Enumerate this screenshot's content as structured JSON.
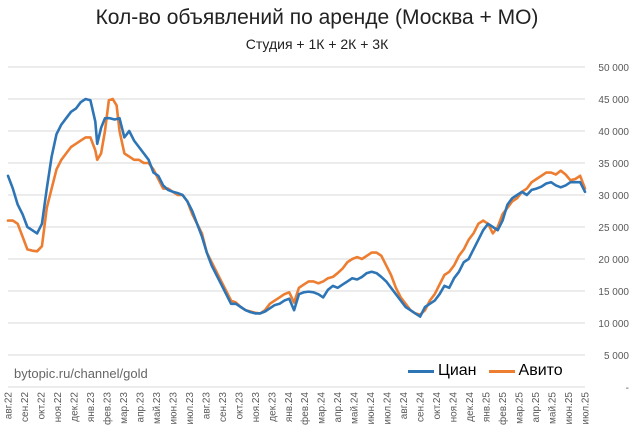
{
  "chart_data": {
    "type": "line",
    "title": "Кол-во объявлений по аренде (Москва + МО)",
    "subtitle": "Студия + 1К + 2К + 3К",
    "watermark": "bytopic.ru/channel/gold",
    "ylim": [
      0,
      50000
    ],
    "y_axis_position": "right",
    "y_ticks": [
      "-",
      "5 000",
      "10 000",
      "15 000",
      "20 000",
      "25 000",
      "30 000",
      "35 000",
      "40 000",
      "45 000",
      "50 000"
    ],
    "y_tick_values": [
      0,
      5000,
      10000,
      15000,
      20000,
      25000,
      30000,
      35000,
      40000,
      45000,
      50000
    ],
    "x_tick_labels": [
      "авг.22",
      "сен.22",
      "окт.22",
      "ноя.22",
      "дек.22",
      "янв.23",
      "фев.23",
      "мар.23",
      "апр.23",
      "май.23",
      "июн.23",
      "июл.23",
      "авг.23",
      "сен.23",
      "окт.23",
      "ноя.23",
      "дек.23",
      "янв.24",
      "фев.24",
      "мар.24",
      "апр.24",
      "май.24",
      "июн.24",
      "июл.24",
      "авг.24",
      "сен.24",
      "окт.24",
      "ноя.24",
      "дек.24",
      "янв.25",
      "фев.25",
      "мар.25",
      "апр.25",
      "май.25",
      "июн.25",
      "июл.25"
    ],
    "grid": "horizontal",
    "legend_position": "bottom-right",
    "series": [
      {
        "name": "Циан",
        "color": "#2e75b6",
        "points": [
          [
            0,
            33000
          ],
          [
            0.25,
            31000
          ],
          [
            0.5,
            28500
          ],
          [
            0.75,
            27000
          ],
          [
            1.0,
            25000
          ],
          [
            1.25,
            24500
          ],
          [
            1.5,
            24000
          ],
          [
            1.75,
            25500
          ],
          [
            2.0,
            31000
          ],
          [
            2.25,
            36000
          ],
          [
            2.5,
            39500
          ],
          [
            2.75,
            41000
          ],
          [
            3.0,
            42000
          ],
          [
            3.25,
            43000
          ],
          [
            3.5,
            43500
          ],
          [
            3.75,
            44500
          ],
          [
            4.0,
            45000
          ],
          [
            4.25,
            44800
          ],
          [
            4.5,
            41500
          ],
          [
            4.6,
            38000
          ],
          [
            4.8,
            40500
          ],
          [
            5.0,
            42000
          ],
          [
            5.25,
            42000
          ],
          [
            5.5,
            41800
          ],
          [
            5.75,
            42000
          ],
          [
            6.0,
            39000
          ],
          [
            6.25,
            40000
          ],
          [
            6.5,
            38500
          ],
          [
            6.75,
            37500
          ],
          [
            7.0,
            36500
          ],
          [
            7.25,
            35500
          ],
          [
            7.5,
            33500
          ],
          [
            7.75,
            33000
          ],
          [
            8.0,
            31500
          ],
          [
            8.25,
            30800
          ],
          [
            8.5,
            30500
          ],
          [
            8.75,
            30300
          ],
          [
            9.0,
            30000
          ],
          [
            9.25,
            29000
          ],
          [
            9.5,
            27500
          ],
          [
            9.75,
            25500
          ],
          [
            10.0,
            23500
          ],
          [
            10.25,
            21000
          ],
          [
            10.5,
            19000
          ],
          [
            10.75,
            17500
          ],
          [
            11.0,
            16000
          ],
          [
            11.25,
            14500
          ],
          [
            11.5,
            13000
          ],
          [
            11.75,
            13000
          ],
          [
            12.0,
            12500
          ],
          [
            12.25,
            12000
          ],
          [
            12.5,
            11700
          ],
          [
            12.75,
            11500
          ],
          [
            13.0,
            11500
          ],
          [
            13.25,
            11800
          ],
          [
            13.5,
            12300
          ],
          [
            13.75,
            12800
          ],
          [
            14.0,
            13000
          ],
          [
            14.25,
            13500
          ],
          [
            14.5,
            13800
          ],
          [
            14.75,
            12000
          ],
          [
            15.0,
            14500
          ],
          [
            15.25,
            14800
          ],
          [
            15.5,
            14900
          ],
          [
            15.75,
            14800
          ],
          [
            16.0,
            14500
          ],
          [
            16.25,
            14000
          ],
          [
            16.5,
            15200
          ],
          [
            16.75,
            15800
          ],
          [
            17.0,
            15500
          ],
          [
            17.25,
            16000
          ],
          [
            17.5,
            16500
          ],
          [
            17.75,
            17000
          ],
          [
            18.0,
            16800
          ],
          [
            18.25,
            17200
          ],
          [
            18.5,
            17800
          ],
          [
            18.75,
            18000
          ],
          [
            19.0,
            17800
          ],
          [
            19.25,
            17200
          ],
          [
            19.5,
            16500
          ],
          [
            19.75,
            15500
          ],
          [
            20.0,
            14500
          ],
          [
            20.25,
            13500
          ],
          [
            20.5,
            12500
          ],
          [
            20.75,
            12000
          ],
          [
            21.0,
            11500
          ],
          [
            21.25,
            11000
          ],
          [
            21.5,
            12500
          ],
          [
            21.75,
            13000
          ],
          [
            22.0,
            13500
          ],
          [
            22.25,
            14500
          ],
          [
            22.5,
            15800
          ],
          [
            22.75,
            15500
          ],
          [
            23.0,
            17000
          ],
          [
            23.25,
            18000
          ],
          [
            23.5,
            19500
          ],
          [
            23.75,
            20000
          ],
          [
            24.0,
            21500
          ],
          [
            24.25,
            23000
          ],
          [
            24.5,
            24500
          ],
          [
            24.75,
            25500
          ],
          [
            25.0,
            25000
          ],
          [
            25.25,
            24500
          ],
          [
            25.5,
            26000
          ],
          [
            25.75,
            28500
          ],
          [
            26.0,
            29500
          ],
          [
            26.25,
            30000
          ],
          [
            26.5,
            30500
          ],
          [
            26.75,
            30000
          ],
          [
            27.0,
            30800
          ],
          [
            27.25,
            31000
          ],
          [
            27.5,
            31300
          ],
          [
            27.75,
            31800
          ],
          [
            28.0,
            32000
          ],
          [
            28.25,
            31500
          ],
          [
            28.5,
            31200
          ],
          [
            28.75,
            31500
          ],
          [
            29.0,
            32000
          ],
          [
            29.25,
            32000
          ],
          [
            29.5,
            32000
          ],
          [
            29.75,
            30500
          ]
        ]
      },
      {
        "name": "Авито",
        "color": "#ed7d31",
        "points": [
          [
            0,
            26000
          ],
          [
            0.25,
            26000
          ],
          [
            0.5,
            25500
          ],
          [
            0.75,
            23500
          ],
          [
            1.0,
            21500
          ],
          [
            1.25,
            21300
          ],
          [
            1.5,
            21200
          ],
          [
            1.75,
            22000
          ],
          [
            2.0,
            28000
          ],
          [
            2.25,
            31000
          ],
          [
            2.5,
            34000
          ],
          [
            2.75,
            35500
          ],
          [
            3.0,
            36500
          ],
          [
            3.25,
            37500
          ],
          [
            3.5,
            38000
          ],
          [
            3.75,
            38500
          ],
          [
            4.0,
            39000
          ],
          [
            4.25,
            39000
          ],
          [
            4.5,
            37000
          ],
          [
            4.6,
            35500
          ],
          [
            4.8,
            36500
          ],
          [
            5.0,
            40000
          ],
          [
            5.2,
            44800
          ],
          [
            5.4,
            45000
          ],
          [
            5.6,
            44000
          ],
          [
            5.75,
            40000
          ],
          [
            6.0,
            36500
          ],
          [
            6.25,
            36000
          ],
          [
            6.5,
            35500
          ],
          [
            6.75,
            35500
          ],
          [
            7.0,
            35000
          ],
          [
            7.25,
            35000
          ],
          [
            7.5,
            34000
          ],
          [
            7.75,
            32500
          ],
          [
            8.0,
            31000
          ],
          [
            8.25,
            31000
          ],
          [
            8.5,
            30500
          ],
          [
            8.75,
            30000
          ],
          [
            9.0,
            30000
          ],
          [
            9.25,
            29000
          ],
          [
            9.5,
            27000
          ],
          [
            9.75,
            25500
          ],
          [
            10.0,
            24000
          ],
          [
            10.25,
            21000
          ],
          [
            10.5,
            19500
          ],
          [
            10.75,
            18000
          ],
          [
            11.0,
            16500
          ],
          [
            11.25,
            15000
          ],
          [
            11.5,
            13500
          ],
          [
            11.75,
            13200
          ],
          [
            12.0,
            12500
          ],
          [
            12.25,
            12000
          ],
          [
            12.5,
            11800
          ],
          [
            12.75,
            11600
          ],
          [
            13.0,
            11500
          ],
          [
            13.25,
            12000
          ],
          [
            13.5,
            13000
          ],
          [
            13.75,
            13500
          ],
          [
            14.0,
            14000
          ],
          [
            14.25,
            14500
          ],
          [
            14.5,
            14800
          ],
          [
            14.75,
            13200
          ],
          [
            15.0,
            15500
          ],
          [
            15.25,
            16000
          ],
          [
            15.5,
            16500
          ],
          [
            15.75,
            16500
          ],
          [
            16.0,
            16200
          ],
          [
            16.25,
            16500
          ],
          [
            16.5,
            17000
          ],
          [
            16.75,
            17200
          ],
          [
            17.0,
            17800
          ],
          [
            17.25,
            18500
          ],
          [
            17.5,
            19500
          ],
          [
            17.75,
            20000
          ],
          [
            18.0,
            20300
          ],
          [
            18.25,
            20000
          ],
          [
            18.5,
            20500
          ],
          [
            18.75,
            21000
          ],
          [
            19.0,
            21000
          ],
          [
            19.25,
            20500
          ],
          [
            19.5,
            19000
          ],
          [
            19.75,
            17500
          ],
          [
            20.0,
            15500
          ],
          [
            20.25,
            14000
          ],
          [
            20.5,
            13000
          ],
          [
            20.75,
            12000
          ],
          [
            21.0,
            11500
          ],
          [
            21.25,
            11300
          ],
          [
            21.5,
            12000
          ],
          [
            21.75,
            13500
          ],
          [
            22.0,
            14500
          ],
          [
            22.25,
            16000
          ],
          [
            22.5,
            17500
          ],
          [
            22.75,
            18000
          ],
          [
            23.0,
            19000
          ],
          [
            23.25,
            20500
          ],
          [
            23.5,
            21500
          ],
          [
            23.75,
            23000
          ],
          [
            24.0,
            24000
          ],
          [
            24.25,
            25500
          ],
          [
            24.5,
            26000
          ],
          [
            24.75,
            25500
          ],
          [
            25.0,
            24000
          ],
          [
            25.25,
            25000
          ],
          [
            25.5,
            27000
          ],
          [
            25.75,
            28000
          ],
          [
            26.0,
            29000
          ],
          [
            26.25,
            29500
          ],
          [
            26.5,
            30500
          ],
          [
            26.75,
            31000
          ],
          [
            27.0,
            32000
          ],
          [
            27.25,
            32500
          ],
          [
            27.5,
            33000
          ],
          [
            27.75,
            33500
          ],
          [
            28.0,
            33500
          ],
          [
            28.25,
            33200
          ],
          [
            28.5,
            33800
          ],
          [
            28.75,
            33200
          ],
          [
            29.0,
            32300
          ],
          [
            29.25,
            32500
          ],
          [
            29.5,
            33000
          ],
          [
            29.75,
            31000
          ]
        ]
      }
    ]
  }
}
